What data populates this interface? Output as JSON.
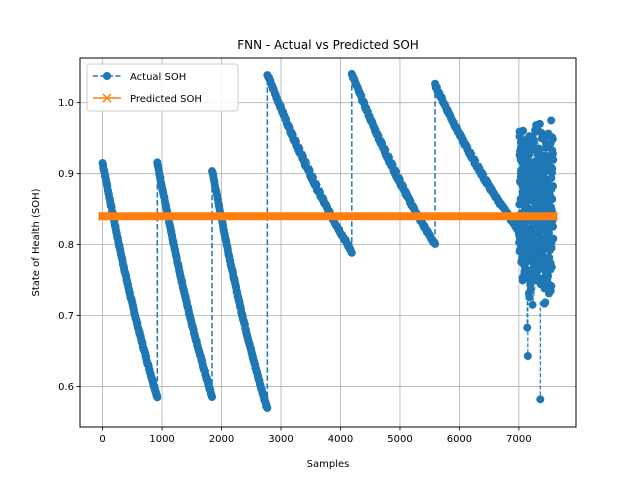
{
  "chart_data": {
    "type": "line",
    "title": "FNN - Actual vs Predicted SOH",
    "xlabel": "Samples",
    "ylabel": "State of Health (SOH)",
    "xlim": [
      -380,
      7960
    ],
    "ylim": [
      0.543,
      1.063
    ],
    "xticks": [
      0,
      1000,
      2000,
      3000,
      4000,
      5000,
      6000,
      7000
    ],
    "yticks": [
      0.6,
      0.7,
      0.8,
      0.9,
      1.0
    ],
    "xtick_labels": [
      "0",
      "1000",
      "2000",
      "3000",
      "4000",
      "5000",
      "6000",
      "7000"
    ],
    "ytick_labels": [
      "0.6",
      "0.7",
      "0.8",
      "0.9",
      "1.0"
    ],
    "grid": true,
    "legend_position": "top-left",
    "series": [
      {
        "name": "Actual SOH",
        "color": "#1f77b4",
        "linestyle": "dashed",
        "marker": "circle",
        "segments": [
          {
            "x_start": 0,
            "x_end": 920,
            "y_start": 0.915,
            "y_end": 0.585
          },
          {
            "x_start": 920,
            "x_end": 1840,
            "y_start": 0.915,
            "y_end": 0.585
          },
          {
            "x_start": 1840,
            "x_end": 2770,
            "y_start": 0.905,
            "y_end": 0.568
          },
          {
            "x_start": 2770,
            "x_end": 4190,
            "y_start": 1.04,
            "y_end": 0.79
          },
          {
            "x_start": 4190,
            "x_end": 5590,
            "y_start": 1.04,
            "y_end": 0.8
          },
          {
            "x_start": 5590,
            "x_end": 7000,
            "y_start": 1.025,
            "y_end": 0.82
          }
        ],
        "noisy_region": {
          "x_start": 7000,
          "x_end": 7580,
          "y_low": 0.71,
          "y_high": 0.975,
          "outliers": [
            [
              7150,
              0.643
            ],
            [
              7140,
              0.683
            ],
            [
              7360,
              0.582
            ]
          ]
        }
      },
      {
        "name": "Predicted SOH",
        "color": "#ff7f0e",
        "linestyle": "solid",
        "marker": "x",
        "x_start": 0,
        "x_end": 7580,
        "value": 0.84
      }
    ]
  }
}
